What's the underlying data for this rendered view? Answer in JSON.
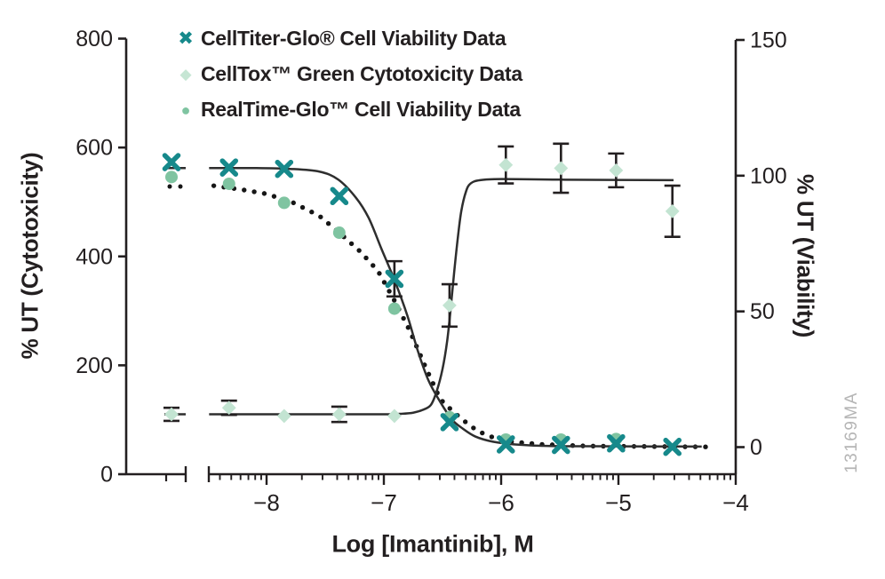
{
  "chart_data": {
    "type": "scatter",
    "title": "",
    "x_axis": {
      "label": "Log [Imantinib], M",
      "major_ticks": [
        -8,
        -7,
        -6,
        -5,
        -4
      ],
      "range_log": [
        -8.46,
        -4
      ],
      "has_break": true,
      "scale": "log"
    },
    "left_axis": {
      "label": "% UT (Cytotoxicity)",
      "ticks": [
        0,
        200,
        400,
        600,
        800
      ],
      "range": [
        0,
        800
      ]
    },
    "right_axis": {
      "label": "% UT (Viability)",
      "ticks": [
        0,
        50,
        100,
        150
      ],
      "range": [
        0,
        150
      ]
    },
    "legend": [
      {
        "label": "CellTiter-Glo® Cell Viability Data",
        "marker": "x",
        "color": "#16898b"
      },
      {
        "label": "CellTox™ Green Cytotoxicity Data",
        "marker": "diamond",
        "color": "#c6e6d4"
      },
      {
        "label": "RealTime-Glo™ Cell Viability Data",
        "marker": "circle",
        "color": "#7fc4a1"
      }
    ],
    "series": [
      {
        "name": "CellTox Green Cytotoxicity",
        "axis": "left",
        "marker": "diamond",
        "color": "#c3e4d2",
        "points": [
          {
            "x": "control",
            "y": 110,
            "err": 12
          },
          {
            "x": -8.32,
            "y": 122,
            "err": 13
          },
          {
            "x": -7.85,
            "y": 107
          },
          {
            "x": -7.38,
            "y": 110,
            "err": 14
          },
          {
            "x": -6.91,
            "y": 107
          },
          {
            "x": -6.44,
            "y": 310,
            "err": 39
          },
          {
            "x": -5.96,
            "y": 568,
            "err": 34
          },
          {
            "x": -5.49,
            "y": 562,
            "err": 45
          },
          {
            "x": -5.02,
            "y": 558,
            "err": 31
          },
          {
            "x": -4.54,
            "y": 483,
            "err": 47
          }
        ]
      },
      {
        "name": "RealTime-Glo Cell Viability",
        "axis": "right",
        "marker": "circle",
        "color": "#7fc4a1",
        "points": [
          {
            "x": "control",
            "y": 99.5
          },
          {
            "x": -8.32,
            "y": 97
          },
          {
            "x": -7.85,
            "y": 90
          },
          {
            "x": -7.38,
            "y": 79
          },
          {
            "x": -6.91,
            "y": 51
          },
          {
            "x": -6.44,
            "y": 11
          },
          {
            "x": -5.96,
            "y": 2.8
          },
          {
            "x": -5.49,
            "y": 2.8
          },
          {
            "x": -5.02,
            "y": 3.0
          }
        ]
      },
      {
        "name": "CellTiter-Glo Cell Viability",
        "axis": "right",
        "marker": "x",
        "color": "#16898b",
        "points": [
          {
            "x": "control",
            "y": 105
          },
          {
            "x": -8.32,
            "y": 103
          },
          {
            "x": -7.85,
            "y": 102.5
          },
          {
            "x": -7.38,
            "y": 92.5
          },
          {
            "x": -6.91,
            "y": 62,
            "err": 6.5
          },
          {
            "x": -6.44,
            "y": 9.2
          },
          {
            "x": -5.96,
            "y": 1.0
          },
          {
            "x": -5.49,
            "y": 0.8
          },
          {
            "x": -5.02,
            "y": 1.4
          },
          {
            "x": -4.54,
            "y": 0.1
          }
        ]
      }
    ],
    "fits": [
      {
        "series": "CellTiter-Glo Cell Viability",
        "axis": "right",
        "style": "solid",
        "control_stub": 102.8,
        "points": [
          [
            -8.49,
            102.8
          ],
          [
            -8.1,
            102.8
          ],
          [
            -7.8,
            102.5
          ],
          [
            -7.55,
            101.5
          ],
          [
            -7.39,
            98.6
          ],
          [
            -7.24,
            92
          ],
          [
            -7.13,
            84.5
          ],
          [
            -7.02,
            73
          ],
          [
            -6.91,
            61.6
          ],
          [
            -6.8,
            48.5
          ],
          [
            -6.71,
            35.4
          ],
          [
            -6.62,
            24.6
          ],
          [
            -6.52,
            16.7
          ],
          [
            -6.42,
            10.2
          ],
          [
            -6.33,
            6.9
          ],
          [
            -6.22,
            3.9
          ],
          [
            -6.07,
            2.0
          ],
          [
            -5.88,
            1.0
          ],
          [
            -5.58,
            0.4
          ],
          [
            -5.0,
            0.3
          ],
          [
            -4.29,
            0.2
          ]
        ]
      },
      {
        "series": "CellTox Green Cytotoxicity",
        "axis": "left",
        "style": "solid",
        "control_stub": 110,
        "points": [
          [
            -8.49,
            110
          ],
          [
            -8.0,
            110
          ],
          [
            -7.4,
            110
          ],
          [
            -7.0,
            110
          ],
          [
            -6.85,
            111
          ],
          [
            -6.75,
            113
          ],
          [
            -6.67,
            118
          ],
          [
            -6.6,
            127
          ],
          [
            -6.55,
            152
          ],
          [
            -6.5,
            193
          ],
          [
            -6.46,
            245
          ],
          [
            -6.43,
            305
          ],
          [
            -6.4,
            372
          ],
          [
            -6.37,
            433
          ],
          [
            -6.34,
            483
          ],
          [
            -6.3,
            519
          ],
          [
            -6.26,
            534
          ],
          [
            -6.18,
            540
          ],
          [
            -6.0,
            542
          ],
          [
            -5.5,
            541
          ],
          [
            -4.53,
            540
          ]
        ]
      },
      {
        "series": "RealTime-Glo Cell Viability",
        "axis": "right",
        "style": "dotted",
        "control_stub": 96,
        "points": [
          [
            -8.45,
            96.3
          ],
          [
            -8.23,
            95
          ],
          [
            -8.0,
            93.3
          ],
          [
            -7.77,
            90
          ],
          [
            -7.55,
            85.2
          ],
          [
            -7.38,
            79
          ],
          [
            -7.2,
            72
          ],
          [
            -7.05,
            64.9
          ],
          [
            -6.91,
            54
          ],
          [
            -6.78,
            43
          ],
          [
            -6.65,
            30
          ],
          [
            -6.52,
            17.7
          ],
          [
            -6.41,
            13.1
          ],
          [
            -6.32,
            9.8
          ],
          [
            -6.2,
            5.9
          ],
          [
            -6.07,
            3.6
          ],
          [
            -5.92,
            2.0
          ],
          [
            -5.65,
            1.0
          ],
          [
            -5.27,
            0.4
          ],
          [
            -4.25,
            0.1
          ]
        ]
      }
    ],
    "watermark": "13169MA"
  }
}
